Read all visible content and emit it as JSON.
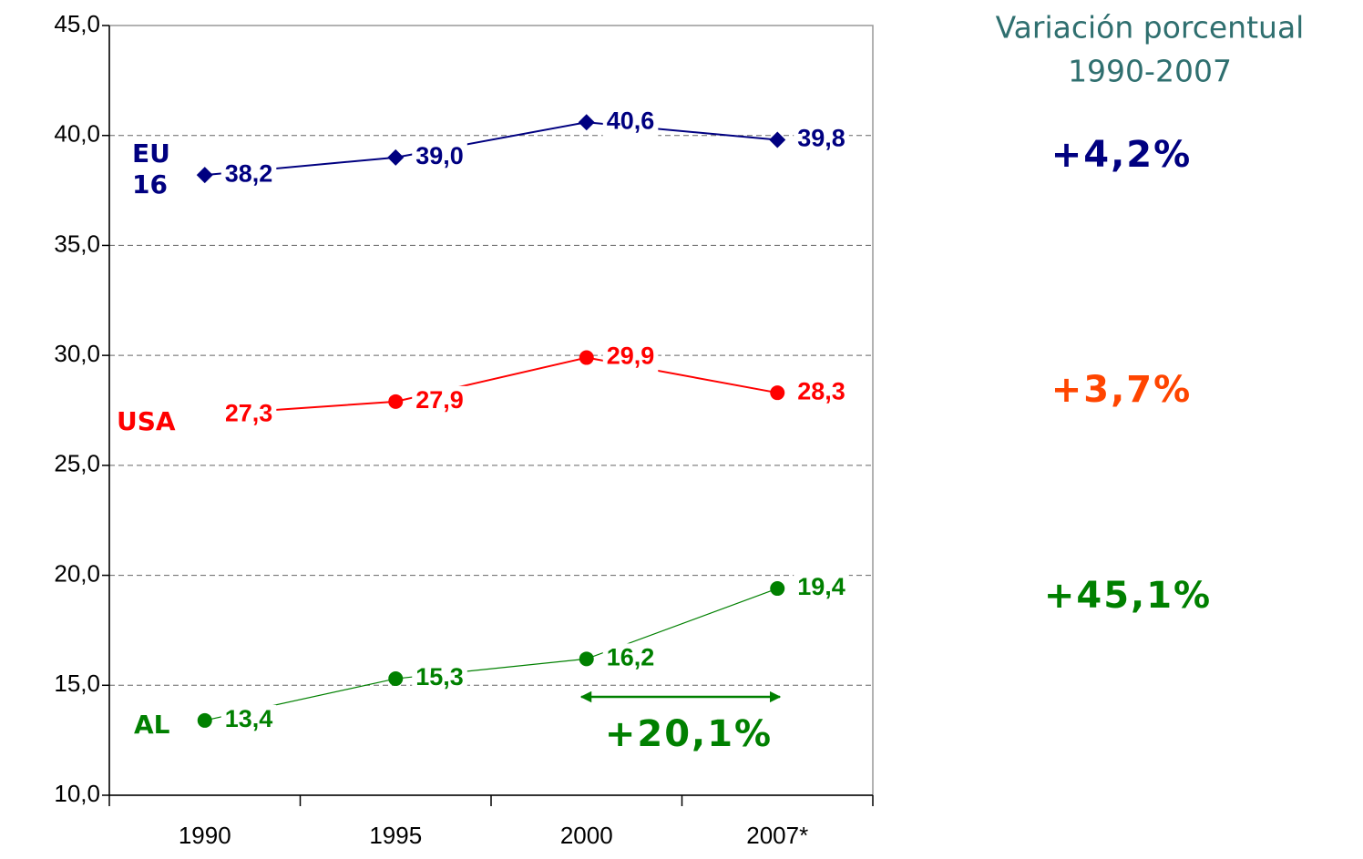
{
  "chart_data": {
    "type": "line",
    "categories": [
      "1990",
      "1995",
      "2000",
      "2007*"
    ],
    "series": [
      {
        "name": "EU 16",
        "color": "#000080",
        "marker": "diamond",
        "values": [
          38.2,
          39.0,
          40.6,
          39.8
        ],
        "value_labels": [
          "38,2",
          "39,0",
          "40,6",
          "39,8"
        ]
      },
      {
        "name": "USA",
        "color": "#ff0000",
        "marker": "circle",
        "values": [
          27.3,
          27.9,
          29.9,
          28.3
        ],
        "value_labels": [
          "27,3",
          "27,9",
          "29,9",
          "28,3"
        ]
      },
      {
        "name": "AL",
        "color": "#008000",
        "marker": "circle",
        "values": [
          13.4,
          15.3,
          16.2,
          19.4
        ],
        "value_labels": [
          "13,4",
          "15,3",
          "16,2",
          "19,4"
        ]
      }
    ],
    "ylim": [
      10,
      45
    ],
    "yticks": [
      {
        "value": 10,
        "label": "10,0"
      },
      {
        "value": 15,
        "label": "15,0"
      },
      {
        "value": 20,
        "label": "20,0"
      },
      {
        "value": 25,
        "label": "25,0"
      },
      {
        "value": 30,
        "label": "30,0"
      },
      {
        "value": 35,
        "label": "35,0"
      },
      {
        "value": 40,
        "label": "40,0"
      },
      {
        "value": 45,
        "label": "45,0"
      }
    ],
    "grid": true,
    "annotations": [
      {
        "text": "Variación porcentual",
        "color": "#2f6f6f"
      },
      {
        "text": "1990-2007",
        "color": "#2f6f6f"
      },
      {
        "text": "+4,2%",
        "color": "#000080"
      },
      {
        "text": "+3,7%",
        "color": "#ff4500"
      },
      {
        "text": "+45,1%",
        "color": "#008000"
      },
      {
        "text": "+20,1%",
        "color": "#008000"
      }
    ]
  }
}
